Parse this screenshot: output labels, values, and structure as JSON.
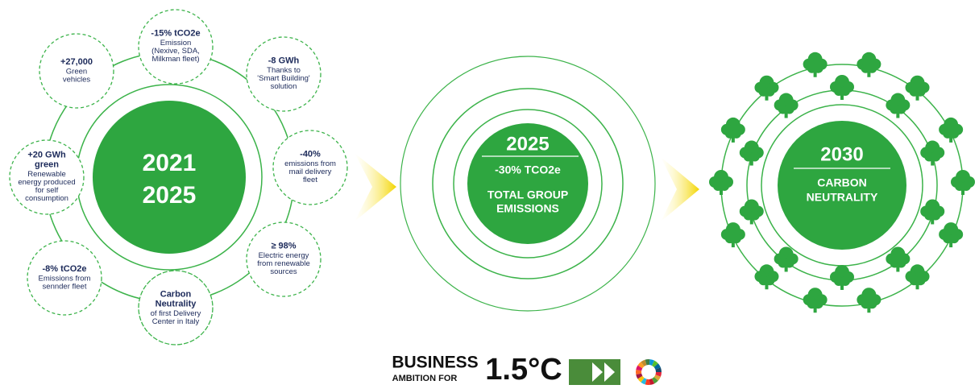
{
  "left": {
    "center": [
      "2021",
      "2025"
    ],
    "items": [
      {
        "title": [
          "-15% tCO2e"
        ],
        "text": [
          "Emission",
          "(Nexive, SDA,",
          "Milkman fleet)"
        ]
      },
      {
        "title": [
          "+27,000"
        ],
        "text": [
          "Green",
          "vehicles"
        ]
      },
      {
        "title": [
          "-8 GWh"
        ],
        "text": [
          "Thanks to",
          "'Smart Building'",
          "solution"
        ]
      },
      {
        "title": [
          "+20 GWh",
          "green"
        ],
        "text": [
          "Renewable",
          "energy produced",
          "for self",
          "consumption"
        ]
      },
      {
        "title": [
          "-40%"
        ],
        "text": [
          "emissions from",
          "mail delivery",
          "fleet"
        ]
      },
      {
        "title": [
          "-8% tCO2e"
        ],
        "text": [
          "Emissions from",
          "sennder fleet"
        ]
      },
      {
        "title": [
          "≥ 98%"
        ],
        "text": [
          "Electric energy",
          "from renewable",
          "sources"
        ]
      },
      {
        "title": [
          "Carbon",
          "Neutrality"
        ],
        "text": [
          "of first Delivery",
          "Center in Italy"
        ]
      }
    ]
  },
  "middle": {
    "year": "2025",
    "value": "-30% TCO2e",
    "label": [
      "TOTAL GROUP",
      "EMISSIONS"
    ]
  },
  "right": {
    "year": "2030",
    "label": [
      "CARBON",
      "NEUTRALITY"
    ]
  },
  "logo": {
    "line1": "BUSINESS",
    "line2": "AMBITION FOR",
    "value": "1.5°C"
  }
}
